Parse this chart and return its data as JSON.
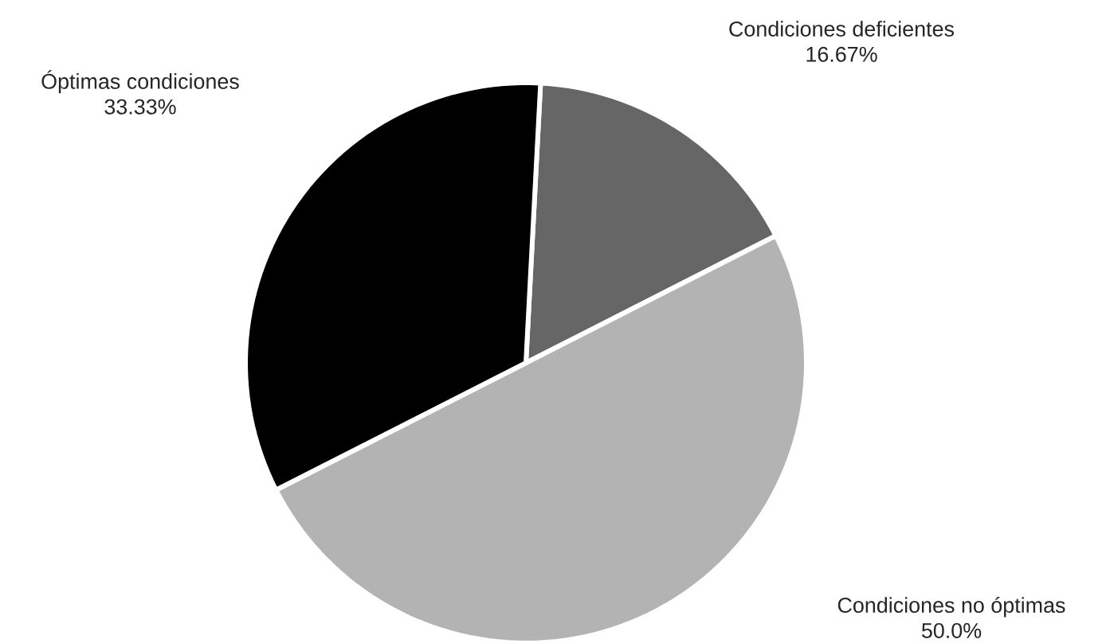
{
  "chart_data": {
    "type": "pie",
    "categories": [
      "Condiciones deficientes",
      "Condiciones no óptimas",
      "Óptimas condiciones"
    ],
    "values": [
      16.67,
      50.0,
      33.33
    ],
    "value_labels": [
      "16.67%",
      "50.0%",
      "33.33%"
    ],
    "colors": [
      "#666666",
      "#b3b3b3",
      "#000000"
    ]
  }
}
